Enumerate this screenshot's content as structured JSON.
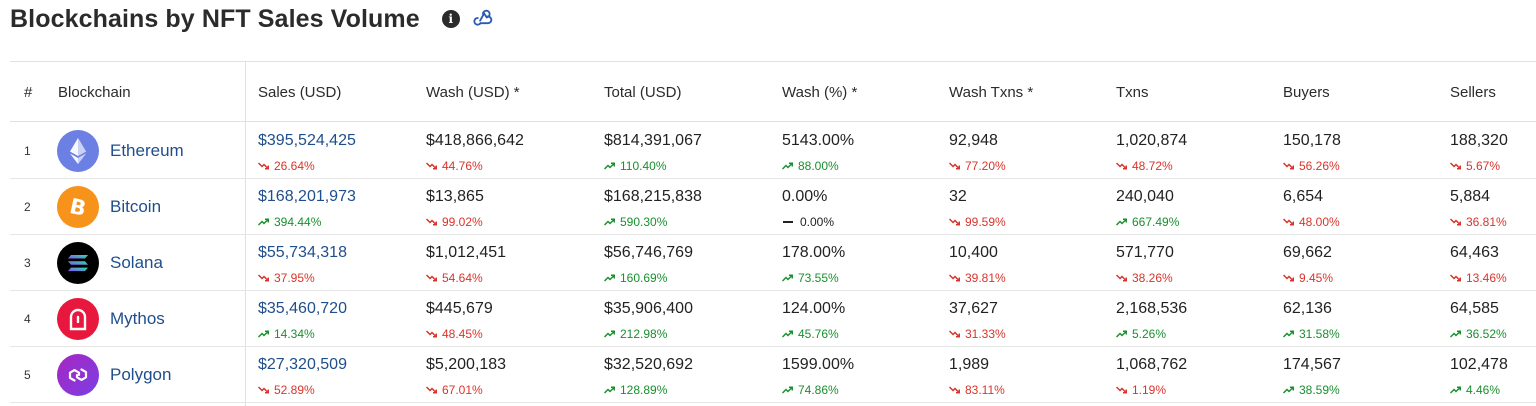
{
  "title": "Blockchains by NFT Sales Volume",
  "icons": {
    "info": "info-icon",
    "webhook": "webhook-icon"
  },
  "colors": {
    "up": "#1a8f2e",
    "down": "#d9342b",
    "link": "#1f4e8c"
  },
  "columns": {
    "rank": "#",
    "blockchain": "Blockchain",
    "sales": "Sales (USD)",
    "wash_usd": "Wash (USD) *",
    "total": "Total (USD)",
    "wash_pct": "Wash (%) *",
    "wash_txns": "Wash Txns *",
    "txns": "Txns",
    "buyers": "Buyers",
    "sellers": "Sellers"
  },
  "rows": [
    {
      "rank": "1",
      "name": "Ethereum",
      "logo": "ethereum-logo",
      "sales": {
        "value": "$395,524,425",
        "change": "26.64%",
        "dir": "down"
      },
      "wash_usd": {
        "value": "$418,866,642",
        "change": "44.76%",
        "dir": "down"
      },
      "total": {
        "value": "$814,391,067",
        "change": "110.40%",
        "dir": "up"
      },
      "wash_pct": {
        "value": "5143.00%",
        "change": "88.00%",
        "dir": "up"
      },
      "wash_txns": {
        "value": "92,948",
        "change": "77.20%",
        "dir": "down"
      },
      "txns": {
        "value": "1,020,874",
        "change": "48.72%",
        "dir": "down"
      },
      "buyers": {
        "value": "150,178",
        "change": "56.26%",
        "dir": "down"
      },
      "sellers": {
        "value": "188,320",
        "change": "5.67%",
        "dir": "down"
      }
    },
    {
      "rank": "2",
      "name": "Bitcoin",
      "logo": "bitcoin-logo",
      "sales": {
        "value": "$168,201,973",
        "change": "394.44%",
        "dir": "up"
      },
      "wash_usd": {
        "value": "$13,865",
        "change": "99.02%",
        "dir": "down"
      },
      "total": {
        "value": "$168,215,838",
        "change": "590.30%",
        "dir": "up"
      },
      "wash_pct": {
        "value": "0.00%",
        "change": "0.00%",
        "dir": "flat"
      },
      "wash_txns": {
        "value": "32",
        "change": "99.59%",
        "dir": "down"
      },
      "txns": {
        "value": "240,040",
        "change": "667.49%",
        "dir": "up"
      },
      "buyers": {
        "value": "6,654",
        "change": "48.00%",
        "dir": "down"
      },
      "sellers": {
        "value": "5,884",
        "change": "36.81%",
        "dir": "down"
      }
    },
    {
      "rank": "3",
      "name": "Solana",
      "logo": "solana-logo",
      "sales": {
        "value": "$55,734,318",
        "change": "37.95%",
        "dir": "down"
      },
      "wash_usd": {
        "value": "$1,012,451",
        "change": "54.64%",
        "dir": "down"
      },
      "total": {
        "value": "$56,746,769",
        "change": "160.69%",
        "dir": "up"
      },
      "wash_pct": {
        "value": "178.00%",
        "change": "73.55%",
        "dir": "up"
      },
      "wash_txns": {
        "value": "10,400",
        "change": "39.81%",
        "dir": "down"
      },
      "txns": {
        "value": "571,770",
        "change": "38.26%",
        "dir": "down"
      },
      "buyers": {
        "value": "69,662",
        "change": "9.45%",
        "dir": "down"
      },
      "sellers": {
        "value": "64,463",
        "change": "13.46%",
        "dir": "down"
      }
    },
    {
      "rank": "4",
      "name": "Mythos",
      "logo": "mythos-logo",
      "sales": {
        "value": "$35,460,720",
        "change": "14.34%",
        "dir": "up"
      },
      "wash_usd": {
        "value": "$445,679",
        "change": "48.45%",
        "dir": "down"
      },
      "total": {
        "value": "$35,906,400",
        "change": "212.98%",
        "dir": "up"
      },
      "wash_pct": {
        "value": "124.00%",
        "change": "45.76%",
        "dir": "up"
      },
      "wash_txns": {
        "value": "37,627",
        "change": "31.33%",
        "dir": "down"
      },
      "txns": {
        "value": "2,168,536",
        "change": "5.26%",
        "dir": "up"
      },
      "buyers": {
        "value": "62,136",
        "change": "31.58%",
        "dir": "up"
      },
      "sellers": {
        "value": "64,585",
        "change": "36.52%",
        "dir": "up"
      }
    },
    {
      "rank": "5",
      "name": "Polygon",
      "logo": "polygon-logo",
      "sales": {
        "value": "$27,320,509",
        "change": "52.89%",
        "dir": "down"
      },
      "wash_usd": {
        "value": "$5,200,183",
        "change": "67.01%",
        "dir": "down"
      },
      "total": {
        "value": "$32,520,692",
        "change": "128.89%",
        "dir": "up"
      },
      "wash_pct": {
        "value": "1599.00%",
        "change": "74.86%",
        "dir": "up"
      },
      "wash_txns": {
        "value": "1,989",
        "change": "83.11%",
        "dir": "down"
      },
      "txns": {
        "value": "1,068,762",
        "change": "1.19%",
        "dir": "down"
      },
      "buyers": {
        "value": "174,567",
        "change": "38.59%",
        "dir": "up"
      },
      "sellers": {
        "value": "102,478",
        "change": "4.46%",
        "dir": "up"
      }
    }
  ]
}
